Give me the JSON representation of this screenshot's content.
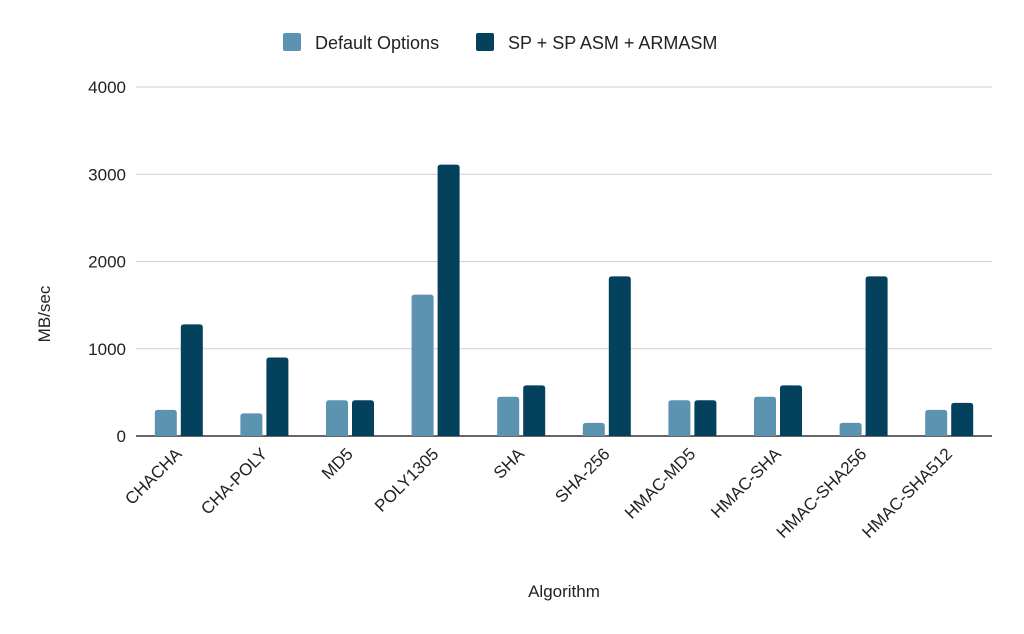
{
  "chart_data": {
    "type": "bar",
    "title": "",
    "xlabel": "Algorithm",
    "ylabel": "MB/sec",
    "ylim": [
      0,
      4000
    ],
    "yticks": [
      0,
      1000,
      2000,
      3000,
      4000
    ],
    "grid": true,
    "legend_position": "top-center",
    "categories": [
      "CHACHA",
      "CHA-POLY",
      "MD5",
      "POLY1305",
      "SHA",
      "SHA-256",
      "HMAC-MD5",
      "HMAC-SHA",
      "HMAC-SHA256",
      "HMAC-SHA512"
    ],
    "series": [
      {
        "name": "Default Options",
        "color": "#5b93b1",
        "values": [
          300,
          260,
          410,
          1620,
          450,
          150,
          410,
          450,
          150,
          300
        ]
      },
      {
        "name": "SP + SP ASM + ARMASM",
        "color": "#03415d",
        "values": [
          1280,
          900,
          410,
          3110,
          580,
          1830,
          410,
          580,
          1830,
          380
        ]
      }
    ]
  }
}
